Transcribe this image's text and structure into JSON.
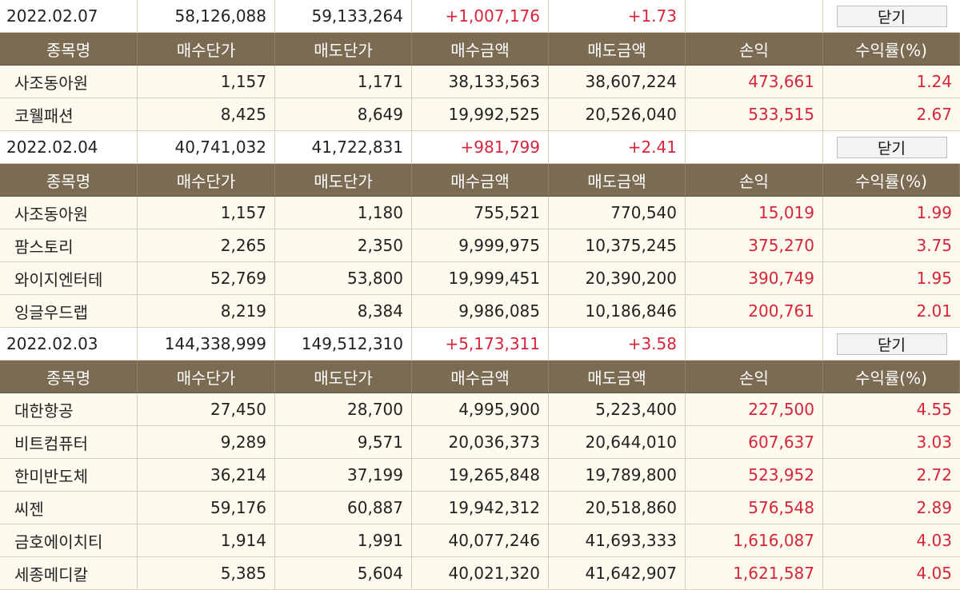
{
  "headers": [
    "종목명",
    "매수단가",
    "매도단가",
    "매수금액",
    "매도금액",
    "손익",
    "수익률(%)"
  ],
  "close_label": "닫기",
  "groups": [
    {
      "date": "2022.02.07",
      "buy_total": "58,126,088",
      "sell_total": "59,133,264",
      "profit": "+1,007,176",
      "rate": "+1.73",
      "rows": [
        {
          "name": "사조동아원",
          "buy_price": "1,157",
          "sell_price": "1,171",
          "buy_amount": "38,133,563",
          "sell_amount": "38,607,224",
          "profit": "473,661",
          "rate": "1.24"
        },
        {
          "name": "코웰패션",
          "buy_price": "8,425",
          "sell_price": "8,649",
          "buy_amount": "19,992,525",
          "sell_amount": "20,526,040",
          "profit": "533,515",
          "rate": "2.67"
        }
      ]
    },
    {
      "date": "2022.02.04",
      "buy_total": "40,741,032",
      "sell_total": "41,722,831",
      "profit": "+981,799",
      "rate": "+2.41",
      "rows": [
        {
          "name": "사조동아원",
          "buy_price": "1,157",
          "sell_price": "1,180",
          "buy_amount": "755,521",
          "sell_amount": "770,540",
          "profit": "15,019",
          "rate": "1.99"
        },
        {
          "name": "팜스토리",
          "buy_price": "2,265",
          "sell_price": "2,350",
          "buy_amount": "9,999,975",
          "sell_amount": "10,375,245",
          "profit": "375,270",
          "rate": "3.75"
        },
        {
          "name": "와이지엔터테",
          "buy_price": "52,769",
          "sell_price": "53,800",
          "buy_amount": "19,999,451",
          "sell_amount": "20,390,200",
          "profit": "390,749",
          "rate": "1.95"
        },
        {
          "name": "잉글우드랩",
          "buy_price": "8,219",
          "sell_price": "8,384",
          "buy_amount": "9,986,085",
          "sell_amount": "10,186,846",
          "profit": "200,761",
          "rate": "2.01"
        }
      ]
    },
    {
      "date": "2022.02.03",
      "buy_total": "144,338,999",
      "sell_total": "149,512,310",
      "profit": "+5,173,311",
      "rate": "+3.58",
      "rows": [
        {
          "name": "대한항공",
          "buy_price": "27,450",
          "sell_price": "28,700",
          "buy_amount": "4,995,900",
          "sell_amount": "5,223,400",
          "profit": "227,500",
          "rate": "4.55"
        },
        {
          "name": "비트컴퓨터",
          "buy_price": "9,289",
          "sell_price": "9,571",
          "buy_amount": "20,036,373",
          "sell_amount": "20,644,010",
          "profit": "607,637",
          "rate": "3.03"
        },
        {
          "name": "한미반도체",
          "buy_price": "36,214",
          "sell_price": "37,199",
          "buy_amount": "19,265,848",
          "sell_amount": "19,789,800",
          "profit": "523,952",
          "rate": "2.72"
        },
        {
          "name": "씨젠",
          "buy_price": "59,176",
          "sell_price": "60,887",
          "buy_amount": "19,942,312",
          "sell_amount": "20,518,860",
          "profit": "576,548",
          "rate": "2.89"
        },
        {
          "name": "금호에이치티",
          "buy_price": "1,914",
          "sell_price": "1,991",
          "buy_amount": "40,077,246",
          "sell_amount": "41,693,333",
          "profit": "1,616,087",
          "rate": "4.03"
        },
        {
          "name": "세종메디칼",
          "buy_price": "5,385",
          "sell_price": "5,604",
          "buy_amount": "40,021,320",
          "sell_amount": "41,642,907",
          "profit": "1,621,587",
          "rate": "4.05"
        }
      ]
    }
  ],
  "colors": {
    "header_bg": "#7a6b52",
    "row_bg": "#fdfaee",
    "positive": "#d8243a"
  }
}
